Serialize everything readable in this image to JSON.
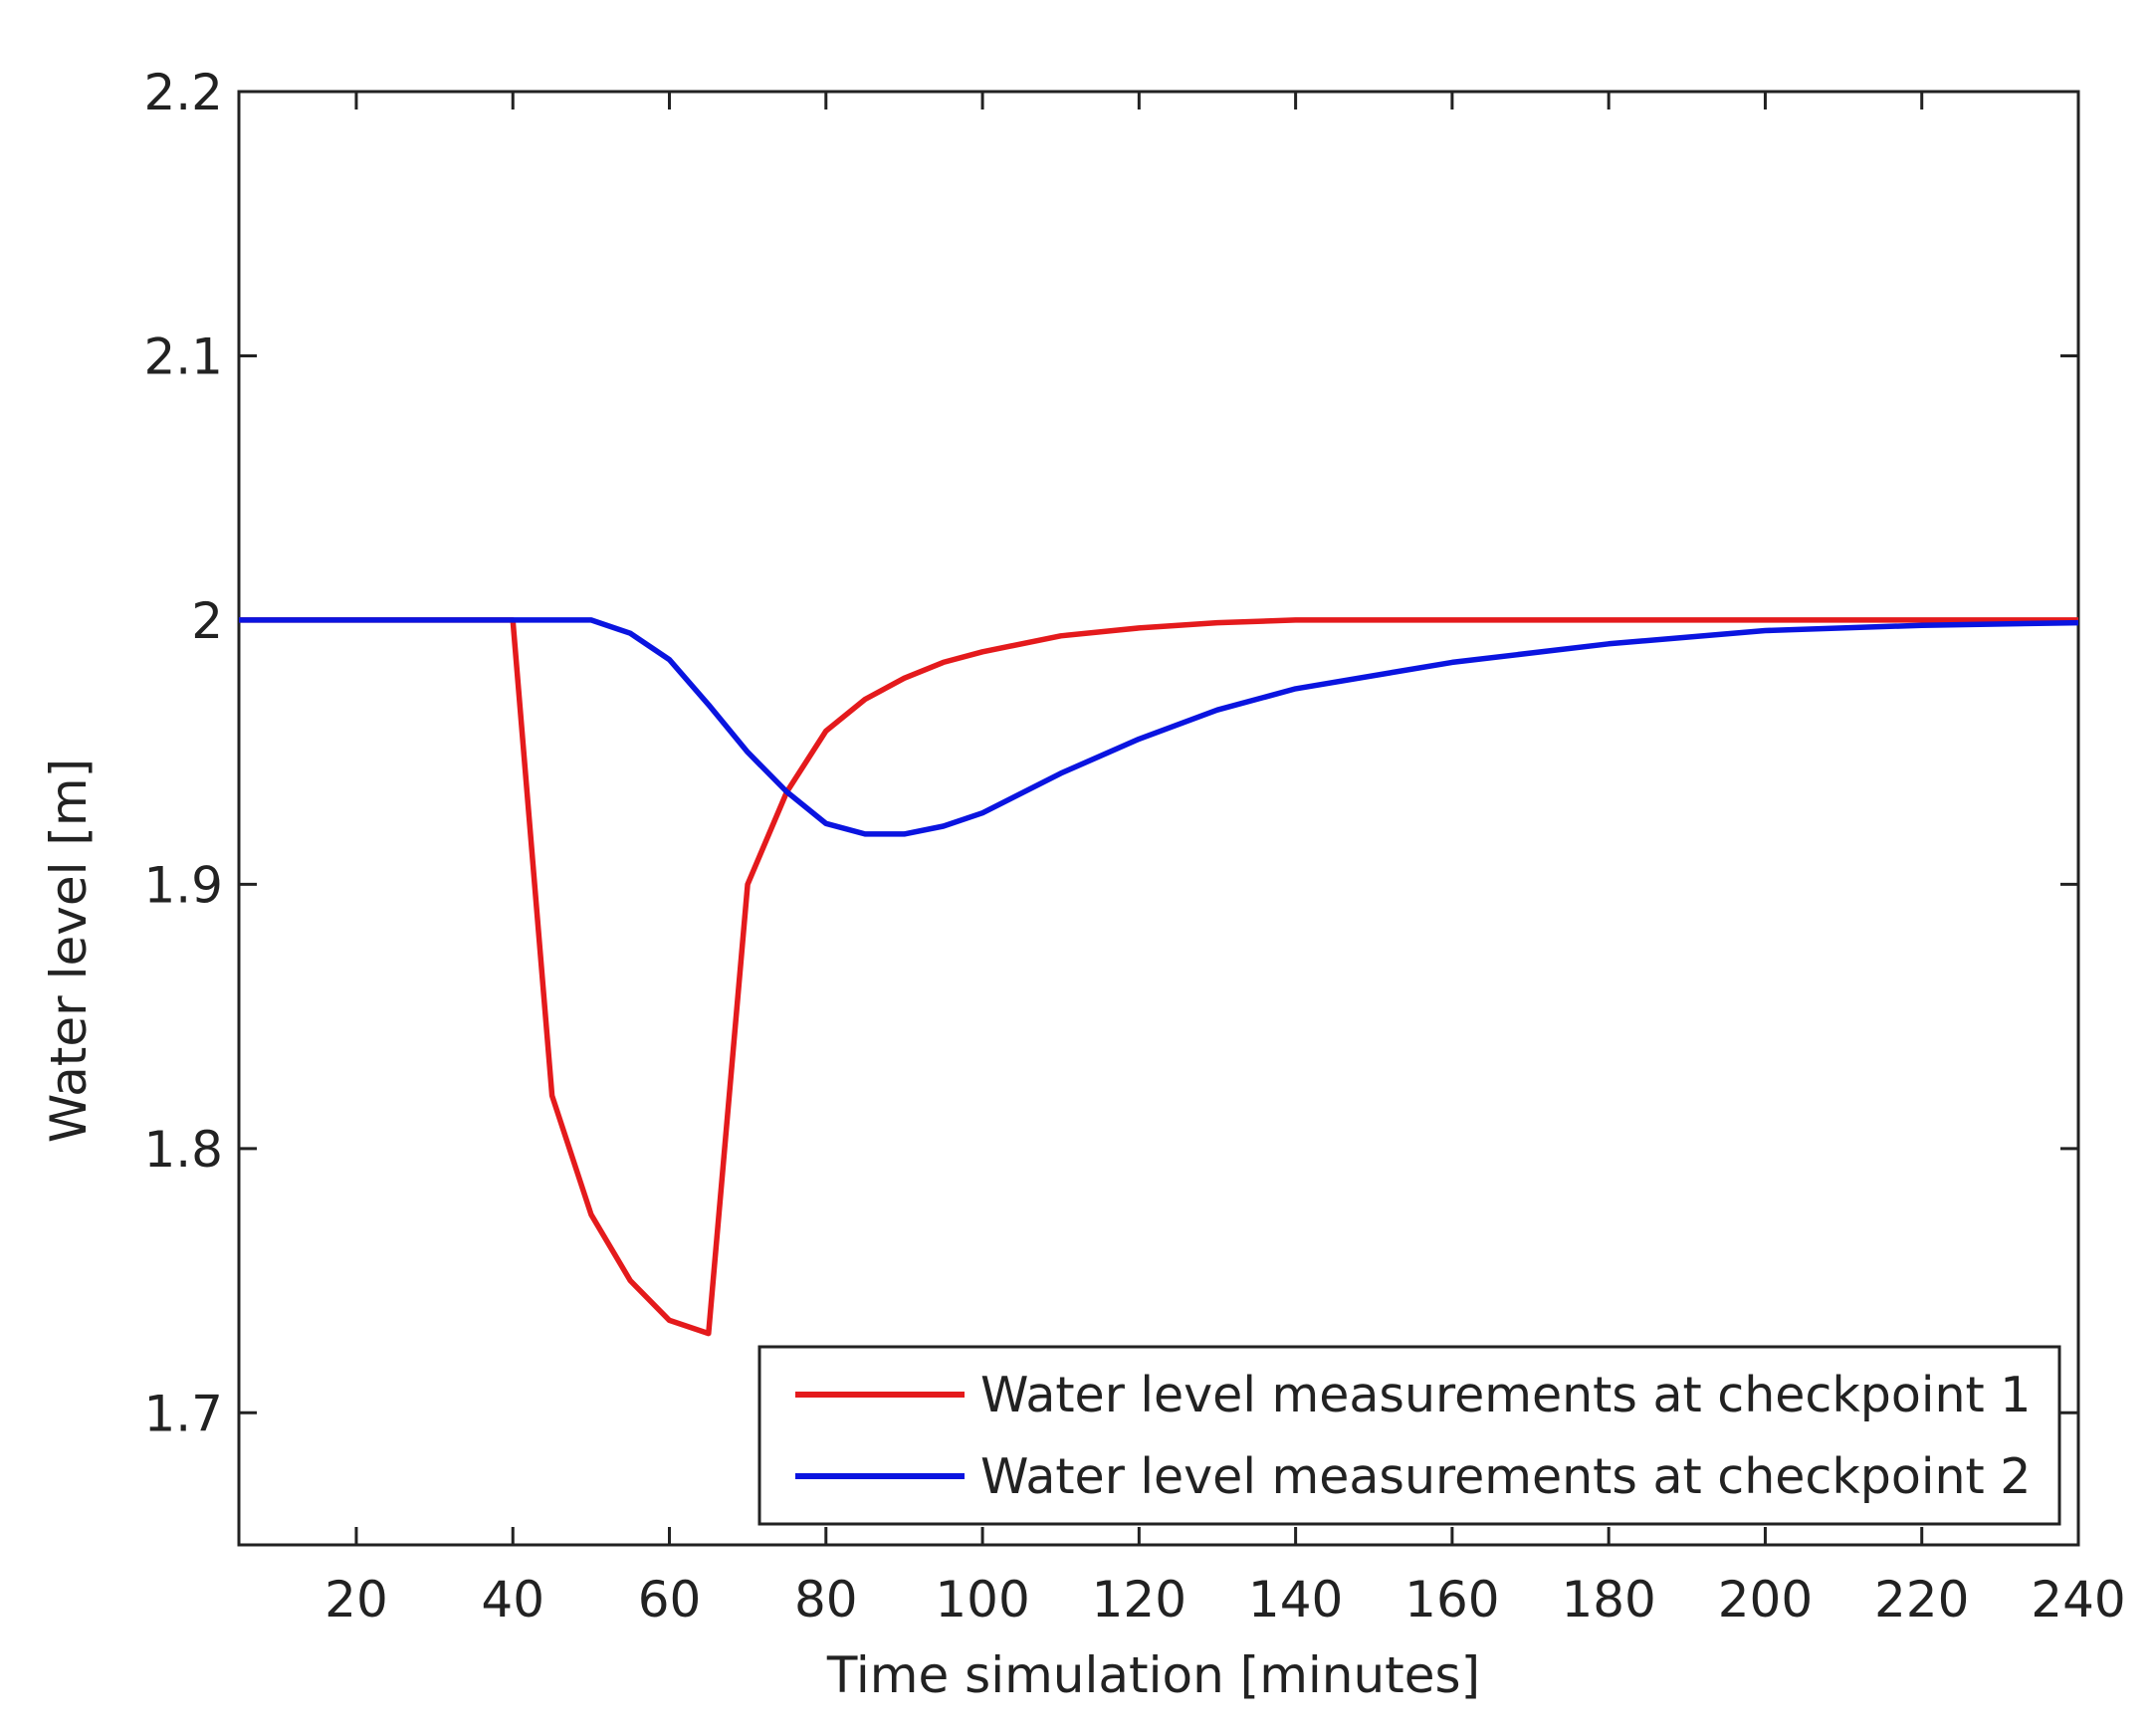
{
  "chart_data": {
    "type": "line",
    "title": "",
    "xlabel": "Time simulation [minutes]",
    "ylabel": "Water level [m]",
    "xlim": [
      5,
      240
    ],
    "ylim": [
      1.65,
      2.2
    ],
    "xticks": [
      20,
      40,
      60,
      80,
      100,
      120,
      140,
      160,
      180,
      200,
      220,
      240
    ],
    "yticks": [
      1.7,
      1.8,
      1.9,
      2.0,
      2.1,
      2.2
    ],
    "ytick_labels": [
      "1.7",
      "1.8",
      "1.9",
      "2",
      "2.1",
      "2.2"
    ],
    "grid": false,
    "legend_position": "bottom-right",
    "series": [
      {
        "name": "Water level measurements at checkpoint 1",
        "color": "#e41a1c",
        "x": [
          5,
          40,
          45,
          50,
          55,
          60,
          65,
          70,
          75,
          80,
          85,
          90,
          95,
          100,
          110,
          120,
          130,
          140,
          160,
          180,
          200,
          220,
          240
        ],
        "y": [
          2.0,
          2.0,
          1.82,
          1.775,
          1.75,
          1.735,
          1.73,
          1.9,
          1.935,
          1.958,
          1.97,
          1.978,
          1.984,
          1.988,
          1.994,
          1.997,
          1.999,
          2.0,
          2.0,
          2.0,
          2.0,
          2.0,
          2.0
        ]
      },
      {
        "name": "Water level measurements at checkpoint 2",
        "color": "#0a14e0",
        "x": [
          5,
          40,
          50,
          55,
          60,
          65,
          70,
          75,
          80,
          85,
          90,
          95,
          100,
          110,
          120,
          130,
          140,
          160,
          180,
          200,
          220,
          240
        ],
        "y": [
          2.0,
          2.0,
          2.0,
          1.995,
          1.985,
          1.968,
          1.95,
          1.935,
          1.923,
          1.919,
          1.919,
          1.922,
          1.927,
          1.942,
          1.955,
          1.966,
          1.974,
          1.984,
          1.991,
          1.996,
          1.998,
          1.999
        ]
      }
    ]
  }
}
